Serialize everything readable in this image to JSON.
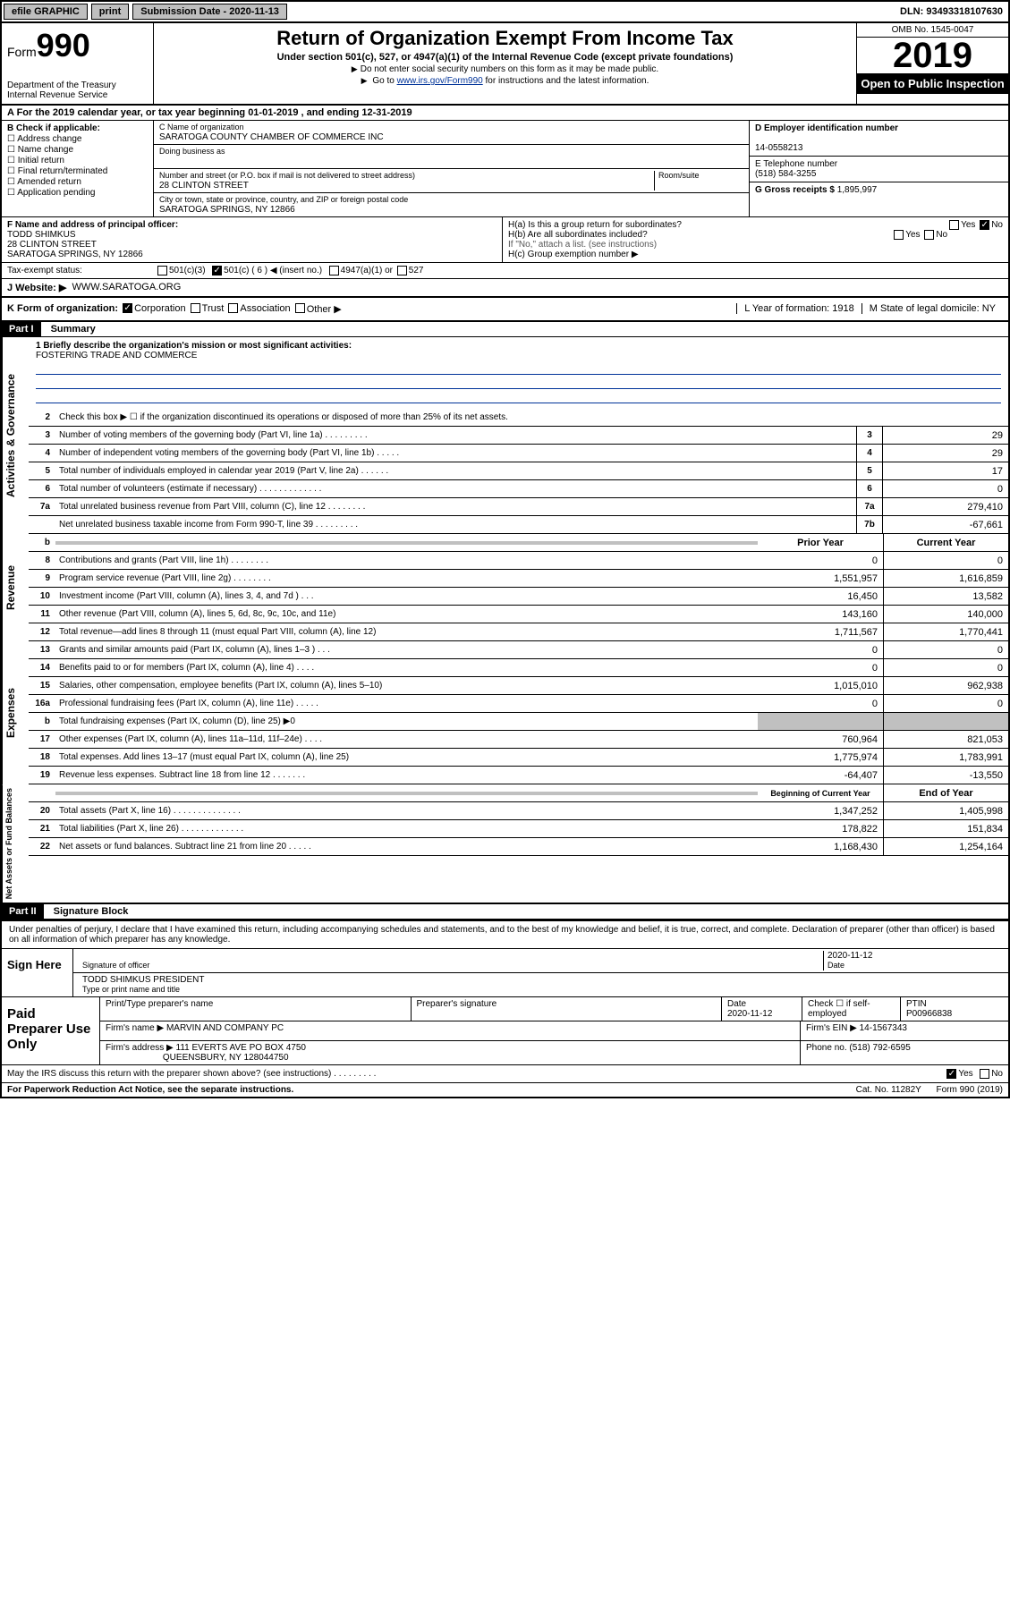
{
  "topbar": {
    "efile": "efile GRAPHIC",
    "print": "print",
    "subdate_label": "Submission Date - 2020-11-13",
    "dln": "DLN: 93493318107630"
  },
  "header": {
    "form_prefix": "Form",
    "form_no": "990",
    "dept1": "Department of the Treasury",
    "dept2": "Internal Revenue Service",
    "title": "Return of Organization Exempt From Income Tax",
    "sub": "Under section 501(c), 527, or 4947(a)(1) of the Internal Revenue Code (except private foundations)",
    "note1": "Do not enter social security numbers on this form as it may be made public.",
    "note2_pre": "Go to ",
    "note2_link": "www.irs.gov/Form990",
    "note2_post": " for instructions and the latest information.",
    "omb": "OMB No. 1545-0047",
    "year": "2019",
    "inspect": "Open to Public Inspection"
  },
  "period": "A For the 2019 calendar year, or tax year beginning 01-01-2019   , and ending 12-31-2019",
  "sectionB": {
    "label": "B Check if applicable:",
    "items": [
      "Address change",
      "Name change",
      "Initial return",
      "Final return/terminated",
      "Amended return",
      "Application pending"
    ]
  },
  "sectionC": {
    "name_lbl": "C Name of organization",
    "name": "SARATOGA COUNTY CHAMBER OF COMMERCE INC",
    "dba_lbl": "Doing business as",
    "addr_lbl": "Number and street (or P.O. box if mail is not delivered to street address)",
    "addr": "28 CLINTON STREET",
    "room_lbl": "Room/suite",
    "city_lbl": "City or town, state or province, country, and ZIP or foreign postal code",
    "city": "SARATOGA SPRINGS, NY  12866"
  },
  "sectionD": {
    "ein_lbl": "D Employer identification number",
    "ein": "14-0558213",
    "tel_lbl": "E Telephone number",
    "tel": "(518) 584-3255",
    "gross_lbl": "G Gross receipts $",
    "gross": "1,895,997"
  },
  "sectionF": {
    "lbl": "F Name and address of principal officer:",
    "name": "TODD SHIMKUS",
    "addr1": "28 CLINTON STREET",
    "addr2": "SARATOGA SPRINGS, NY  12866"
  },
  "sectionH": {
    "a": "H(a)  Is this a group return for subordinates?",
    "b": "H(b)  Are all subordinates included?",
    "b_note": "If \"No,\" attach a list. (see instructions)",
    "c": "H(c)  Group exemption number ▶"
  },
  "taxstatus": {
    "lbl": "Tax-exempt status:",
    "o501c3": "501(c)(3)",
    "o501c": "501(c) ( 6 ) ◀ (insert no.)",
    "o4947": "4947(a)(1) or",
    "o527": "527"
  },
  "website": {
    "lbl": "J   Website: ▶",
    "val": "WWW.SARATOGA.ORG"
  },
  "rowK": {
    "lbl": "K Form of organization:",
    "corp": "Corporation",
    "trust": "Trust",
    "assoc": "Association",
    "other": "Other ▶",
    "L": "L Year of formation: 1918",
    "M": "M State of legal domicile: NY"
  },
  "partI": {
    "tag": "Part I",
    "title": "Summary"
  },
  "mission": {
    "q": "1  Briefly describe the organization's mission or most significant activities:",
    "a": "FOSTERING TRADE AND COMMERCE"
  },
  "lines_gov": [
    {
      "n": "2",
      "t": "Check this box ▶ ☐  if the organization discontinued its operations or disposed of more than 25% of its net assets."
    },
    {
      "n": "3",
      "t": "Number of voting members of the governing body (Part VI, line 1a)  .   .   .   .   .   .   .   .   .",
      "b": "3",
      "v": "29"
    },
    {
      "n": "4",
      "t": "Number of independent voting members of the governing body (Part VI, line 1b)  .   .   .   .   .",
      "b": "4",
      "v": "29"
    },
    {
      "n": "5",
      "t": "Total number of individuals employed in calendar year 2019 (Part V, line 2a)  .   .   .   .   .   .",
      "b": "5",
      "v": "17"
    },
    {
      "n": "6",
      "t": "Total number of volunteers (estimate if necessary)  .   .   .   .   .   .   .   .   .   .   .   .   .",
      "b": "6",
      "v": "0"
    },
    {
      "n": "7a",
      "t": "Total unrelated business revenue from Part VIII, column (C), line 12  .   .   .   .   .   .   .   .",
      "b": "7a",
      "v": "279,410"
    },
    {
      "n": "",
      "t": "Net unrelated business taxable income from Form 990-T, line 39  .   .   .   .   .   .   .   .   .",
      "b": "7b",
      "v": "-67,661"
    }
  ],
  "col_hdr": {
    "b": "b",
    "py": "Prior Year",
    "cy": "Current Year"
  },
  "lines_rev": [
    {
      "n": "8",
      "t": "Contributions and grants (Part VIII, line 1h)  .   .   .   .   .   .   .   .",
      "py": "0",
      "cy": "0"
    },
    {
      "n": "9",
      "t": "Program service revenue (Part VIII, line 2g)  .   .   .   .   .   .   .   .",
      "py": "1,551,957",
      "cy": "1,616,859"
    },
    {
      "n": "10",
      "t": "Investment income (Part VIII, column (A), lines 3, 4, and 7d )  .   .   .",
      "py": "16,450",
      "cy": "13,582"
    },
    {
      "n": "11",
      "t": "Other revenue (Part VIII, column (A), lines 5, 6d, 8c, 9c, 10c, and 11e)",
      "py": "143,160",
      "cy": "140,000"
    },
    {
      "n": "12",
      "t": "Total revenue—add lines 8 through 11 (must equal Part VIII, column (A), line 12)",
      "py": "1,711,567",
      "cy": "1,770,441"
    }
  ],
  "lines_exp": [
    {
      "n": "13",
      "t": "Grants and similar amounts paid (Part IX, column (A), lines 1–3 )  .   .   .",
      "py": "0",
      "cy": "0"
    },
    {
      "n": "14",
      "t": "Benefits paid to or for members (Part IX, column (A), line 4)  .   .   .   .",
      "py": "0",
      "cy": "0"
    },
    {
      "n": "15",
      "t": "Salaries, other compensation, employee benefits (Part IX, column (A), lines 5–10)",
      "py": "1,015,010",
      "cy": "962,938"
    },
    {
      "n": "16a",
      "t": "Professional fundraising fees (Part IX, column (A), line 11e)  .   .   .   .   .",
      "py": "0",
      "cy": "0"
    },
    {
      "n": "b",
      "t": "Total fundraising expenses (Part IX, column (D), line 25) ▶0",
      "py": "",
      "cy": "",
      "shade": true
    },
    {
      "n": "17",
      "t": "Other expenses (Part IX, column (A), lines 11a–11d, 11f–24e)  .   .   .   .",
      "py": "760,964",
      "cy": "821,053"
    },
    {
      "n": "18",
      "t": "Total expenses. Add lines 13–17 (must equal Part IX, column (A), line 25)",
      "py": "1,775,974",
      "cy": "1,783,991"
    },
    {
      "n": "19",
      "t": "Revenue less expenses. Subtract line 18 from line 12  .   .   .   .   .   .   .",
      "py": "-64,407",
      "cy": "-13,550"
    }
  ],
  "col_hdr2": {
    "py": "Beginning of Current Year",
    "cy": "End of Year"
  },
  "lines_net": [
    {
      "n": "20",
      "t": "Total assets (Part X, line 16)  .   .   .   .   .   .   .   .   .   .   .   .   .   .",
      "py": "1,347,252",
      "cy": "1,405,998"
    },
    {
      "n": "21",
      "t": "Total liabilities (Part X, line 26)  .   .   .   .   .   .   .   .   .   .   .   .   .",
      "py": "178,822",
      "cy": "151,834"
    },
    {
      "n": "22",
      "t": "Net assets or fund balances. Subtract line 21 from line 20  .   .   .   .   .",
      "py": "1,168,430",
      "cy": "1,254,164"
    }
  ],
  "sidebars": {
    "gov": "Activities & Governance",
    "rev": "Revenue",
    "exp": "Expenses",
    "net": "Net Assets or Fund Balances"
  },
  "partII": {
    "tag": "Part II",
    "title": "Signature Block"
  },
  "perjury": "Under penalties of perjury, I declare that I have examined this return, including accompanying schedules and statements, and to the best of my knowledge and belief, it is true, correct, and complete. Declaration of preparer (other than officer) is based on all information of which preparer has any knowledge.",
  "sign": {
    "here": "Sign Here",
    "sig_lbl": "Signature of officer",
    "date": "2020-11-12",
    "date_lbl": "Date",
    "name": "TODD SHIMKUS  PRESIDENT",
    "name_lbl": "Type or print name and title"
  },
  "paid": {
    "here": "Paid Preparer Use Only",
    "h1": "Print/Type preparer's name",
    "h2": "Preparer's signature",
    "h3": "Date",
    "h3v": "2020-11-12",
    "h4": "Check ☐ if self-employed",
    "h5": "PTIN",
    "h5v": "P00966838",
    "firm_lbl": "Firm's name    ▶",
    "firm": "MARVIN AND COMPANY PC",
    "ein_lbl": "Firm's EIN ▶",
    "ein": "14-1567343",
    "addr_lbl": "Firm's address ▶",
    "addr1": "111 EVERTS AVE PO BOX 4750",
    "addr2": "QUEENSBURY, NY  128044750",
    "phone_lbl": "Phone no.",
    "phone": "(518) 792-6595"
  },
  "discuss": "May the IRS discuss this return with the preparer shown above? (see instructions)  .   .   .   .   .   .   .   .   .",
  "footer": {
    "pra": "For Paperwork Reduction Act Notice, see the separate instructions.",
    "cat": "Cat. No. 11282Y",
    "form": "Form 990 (2019)"
  }
}
